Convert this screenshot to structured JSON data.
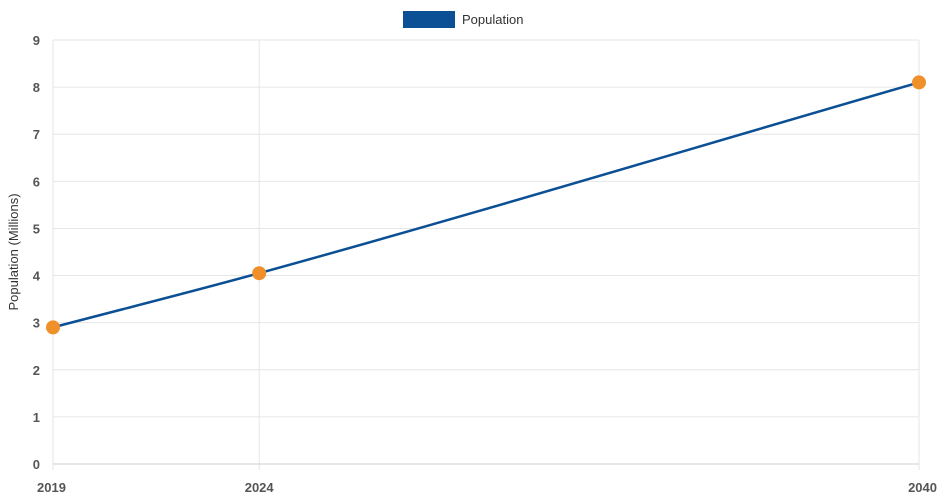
{
  "chart_data": {
    "type": "line",
    "title": "",
    "xlabel": "",
    "ylabel": "Population (Millions)",
    "categories": [
      "2019",
      "2024",
      "2040"
    ],
    "x": [
      2019,
      2024,
      2040
    ],
    "series": [
      {
        "name": "Population",
        "values": [
          2.9,
          4.05,
          8.1
        ]
      }
    ],
    "ylim": [
      0,
      9
    ],
    "yticks": [
      0,
      1,
      2,
      3,
      4,
      5,
      6,
      7,
      8,
      9
    ],
    "grid": true,
    "legend": "top-center",
    "line_color": "#0b4f94",
    "point_color": "#f0902a",
    "grid_color": "#e6e6e6"
  }
}
